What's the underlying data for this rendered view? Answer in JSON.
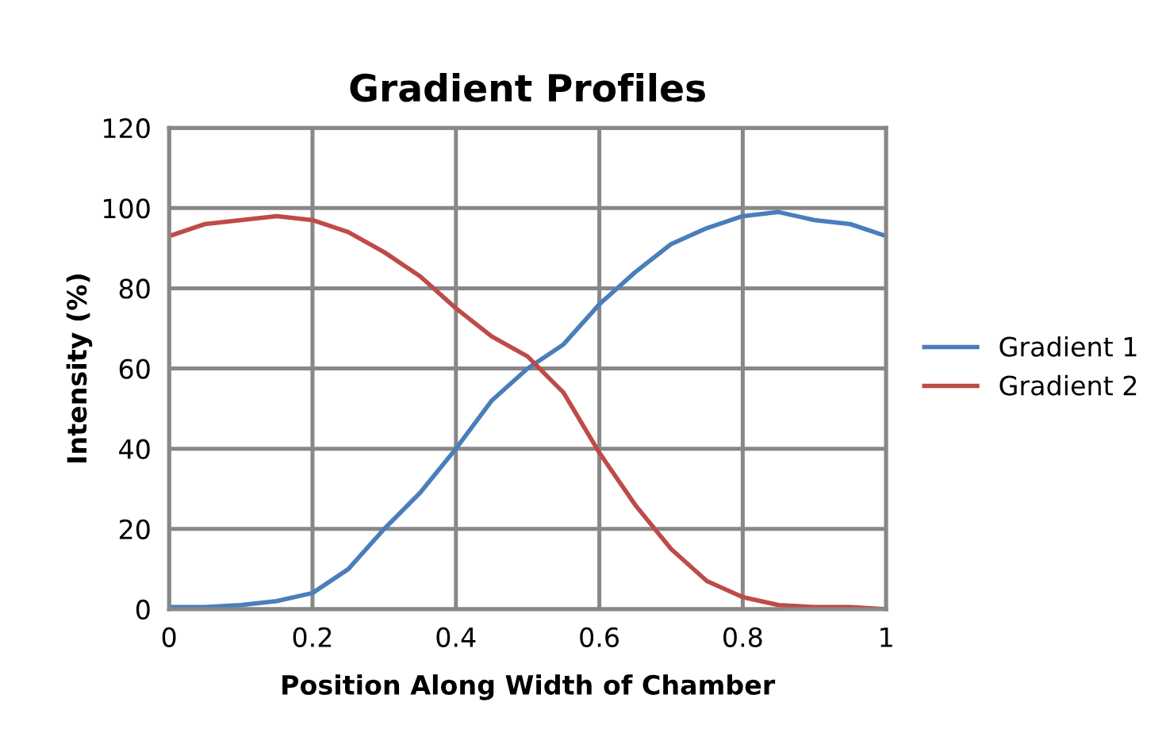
{
  "chart_data": {
    "type": "line",
    "title": "Gradient Profiles",
    "xlabel": "Position Along Width of Chamber",
    "ylabel": "Intensity (%)",
    "xlim": [
      0,
      1
    ],
    "xticks": [
      0,
      0.2,
      0.4,
      0.6,
      0.8,
      1
    ],
    "ylim": [
      0,
      120
    ],
    "yticks": [
      0,
      20,
      40,
      60,
      80,
      100,
      120
    ],
    "grid": true,
    "legend": "right",
    "marker": "none",
    "line_style": "solid",
    "series": [
      {
        "name": "Gradient 1",
        "color": "#4a7ebb",
        "x": [
          0,
          0.05,
          0.1,
          0.15,
          0.2,
          0.25,
          0.3,
          0.35,
          0.4,
          0.45,
          0.5,
          0.55,
          0.6,
          0.65,
          0.7,
          0.75,
          0.8,
          0.85,
          0.9,
          0.95,
          1
        ],
        "values": [
          0.5,
          0.5,
          1,
          2,
          4,
          10,
          20,
          29,
          40,
          52,
          60,
          66,
          76,
          84,
          91,
          95,
          98,
          99,
          97,
          96,
          93
        ]
      },
      {
        "name": "Gradient 2",
        "color": "#be4b48",
        "x": [
          0,
          0.05,
          0.1,
          0.15,
          0.2,
          0.25,
          0.3,
          0.35,
          0.4,
          0.45,
          0.5,
          0.55,
          0.6,
          0.65,
          0.7,
          0.75,
          0.8,
          0.85,
          0.9,
          0.95,
          1
        ],
        "values": [
          93,
          96,
          97,
          98,
          97,
          94,
          89,
          83,
          75,
          68,
          63,
          54,
          39,
          26,
          15,
          7,
          3,
          1,
          0.5,
          0.5,
          0
        ]
      }
    ]
  }
}
